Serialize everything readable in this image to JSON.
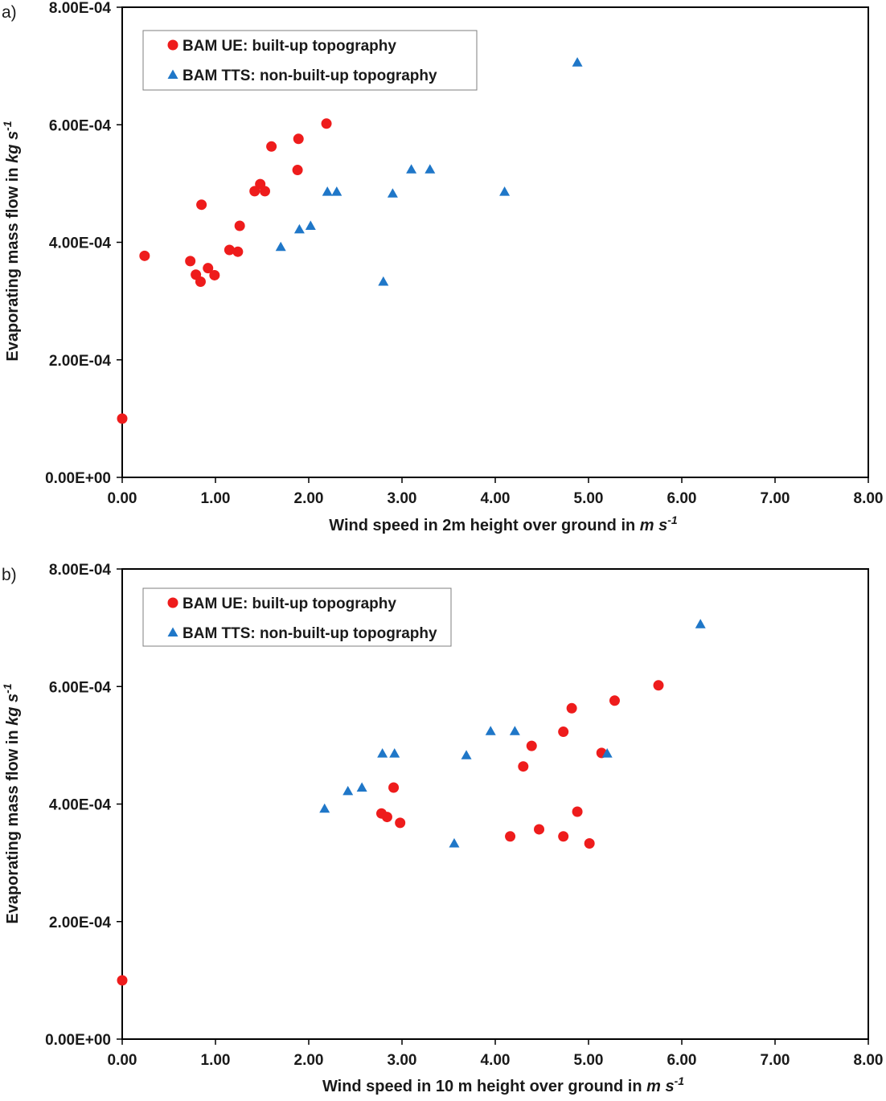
{
  "chart_data": [
    {
      "type": "scatter",
      "panel_label": "a)",
      "xlabel": {
        "main": "Wind speed in 2m height over ground in ",
        "unit": "m s",
        "sup": "-1"
      },
      "ylabel": {
        "main": "Evaporating mass flow in ",
        "unit": "kg s",
        "sup": "-1"
      },
      "xlim": [
        0,
        8
      ],
      "ylim": [
        0,
        0.0008
      ],
      "x_ticks": [
        "0.00",
        "1.00",
        "2.00",
        "3.00",
        "4.00",
        "5.00",
        "6.00",
        "7.00",
        "8.00"
      ],
      "y_ticks": [
        "0.00E+00",
        "2.00E-04",
        "4.00E-04",
        "6.00E-04",
        "8.00E-04"
      ],
      "grid": false,
      "legend_position": "top-left",
      "series": [
        {
          "name": "BAM UE: built-up topography",
          "marker": "circle",
          "color": "#ee1c1c",
          "points": [
            [
              0.0,
              0.0001
            ],
            [
              0.24,
              0.000377
            ],
            [
              0.73,
              0.000368
            ],
            [
              0.79,
              0.000345
            ],
            [
              0.84,
              0.000333
            ],
            [
              0.92,
              0.000356
            ],
            [
              0.99,
              0.000344
            ],
            [
              0.85,
              0.000464
            ],
            [
              1.15,
              0.000387
            ],
            [
              1.24,
              0.000384
            ],
            [
              1.26,
              0.000428
            ],
            [
              1.42,
              0.000487
            ],
            [
              1.48,
              0.000499
            ],
            [
              1.53,
              0.000487
            ],
            [
              1.6,
              0.000563
            ],
            [
              1.88,
              0.000523
            ],
            [
              1.89,
              0.000576
            ],
            [
              2.19,
              0.000602
            ]
          ]
        },
        {
          "name": "BAM TTS: non-built-up topography",
          "marker": "triangle",
          "color": "#1f77c8",
          "points": [
            [
              1.7,
              0.000392
            ],
            [
              1.9,
              0.000422
            ],
            [
              2.02,
              0.000428
            ],
            [
              2.2,
              0.000486
            ],
            [
              2.3,
              0.000486
            ],
            [
              2.8,
              0.000333
            ],
            [
              2.9,
              0.000483
            ],
            [
              3.1,
              0.000524
            ],
            [
              3.3,
              0.000524
            ],
            [
              4.1,
              0.000486
            ],
            [
              4.88,
              0.000706
            ]
          ]
        }
      ]
    },
    {
      "type": "scatter",
      "panel_label": "b)",
      "xlabel": {
        "main": "Wind speed in 10 m height over ground in ",
        "unit": "m s",
        "sup": "-1"
      },
      "ylabel": {
        "main": "Evaporating mass flow in ",
        "unit": "kg s",
        "sup": "-1"
      },
      "xlim": [
        0,
        8
      ],
      "ylim": [
        0,
        0.0008
      ],
      "x_ticks": [
        "0.00",
        "1.00",
        "2.00",
        "3.00",
        "4.00",
        "5.00",
        "6.00",
        "7.00",
        "8.00"
      ],
      "y_ticks": [
        "0.00E+00",
        "2.00E-04",
        "4.00E-04",
        "6.00E-04",
        "8.00E-04"
      ],
      "grid": false,
      "legend_position": "top-left",
      "series": [
        {
          "name": "BAM UE: built-up topography",
          "marker": "circle",
          "color": "#ee1c1c",
          "points": [
            [
              0.0,
              0.0001
            ],
            [
              2.78,
              0.000384
            ],
            [
              2.84,
              0.000378
            ],
            [
              2.91,
              0.000428
            ],
            [
              2.98,
              0.000368
            ],
            [
              4.16,
              0.000345
            ],
            [
              4.3,
              0.000464
            ],
            [
              4.39,
              0.000499
            ],
            [
              4.47,
              0.000357
            ],
            [
              4.73,
              0.000523
            ],
            [
              4.73,
              0.000345
            ],
            [
              4.82,
              0.000563
            ],
            [
              4.88,
              0.000387
            ],
            [
              5.01,
              0.000333
            ],
            [
              5.14,
              0.000487
            ],
            [
              5.28,
              0.000576
            ],
            [
              5.75,
              0.000602
            ]
          ]
        },
        {
          "name": "BAM TTS: non-built-up topography",
          "marker": "triangle",
          "color": "#1f77c8",
          "points": [
            [
              2.17,
              0.000392
            ],
            [
              2.42,
              0.000422
            ],
            [
              2.57,
              0.000428
            ],
            [
              2.79,
              0.000486
            ],
            [
              2.92,
              0.000486
            ],
            [
              3.56,
              0.000333
            ],
            [
              3.69,
              0.000483
            ],
            [
              3.95,
              0.000524
            ],
            [
              4.21,
              0.000524
            ],
            [
              5.2,
              0.000486
            ],
            [
              6.2,
              0.000706
            ]
          ]
        }
      ]
    }
  ]
}
